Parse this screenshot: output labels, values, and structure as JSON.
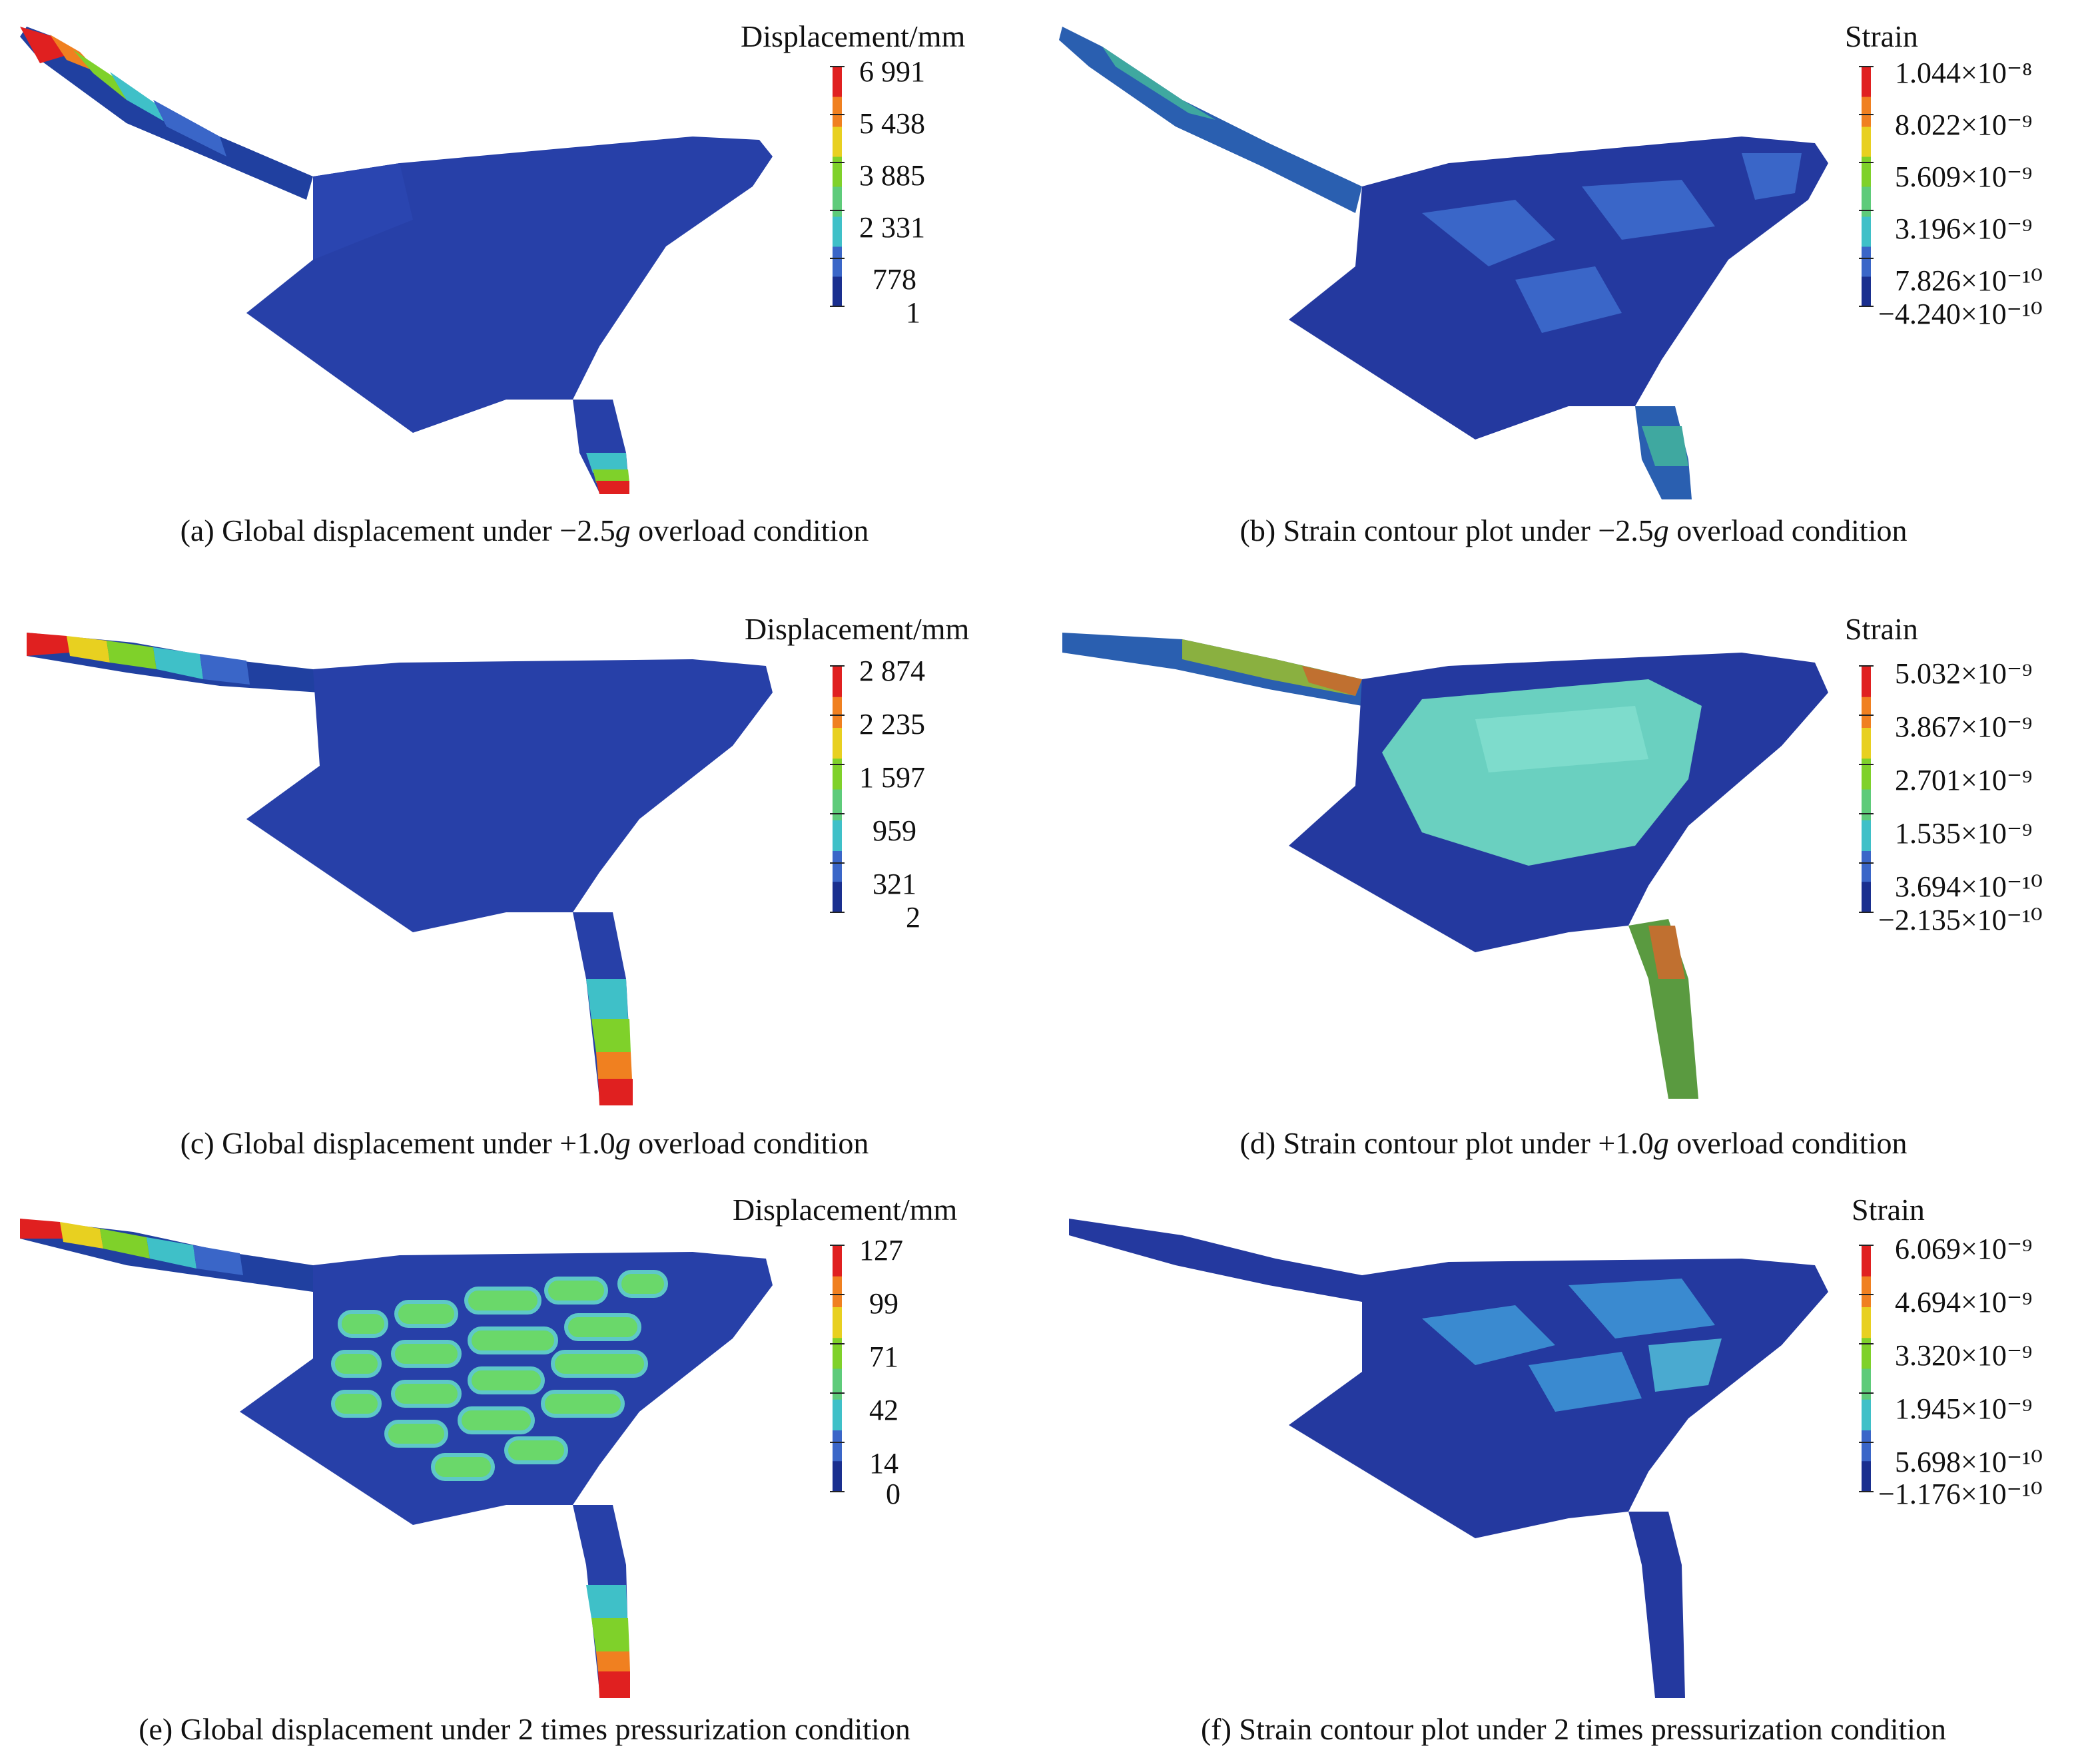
{
  "palette": [
    "#1a2f8f",
    "#3a66c8",
    "#3fc0c8",
    "#5ecb7a",
    "#7fd12a",
    "#e8d020",
    "#f08020",
    "#e02020"
  ],
  "panels": [
    {
      "id": "a",
      "legend_title": "Displacement/mm",
      "ticks": [
        "6 991",
        "5 438",
        "3 885",
        "2 331",
        "778",
        "1"
      ],
      "caption_pre": "(a) Global displacement under −2.5",
      "caption_g": "g",
      "caption_post": " overload condition"
    },
    {
      "id": "b",
      "legend_title": "Strain",
      "ticks": [
        "1.044×10⁻⁸",
        "8.022×10⁻⁹",
        "5.609×10⁻⁹",
        "3.196×10⁻⁹",
        "7.826×10⁻¹⁰",
        "−4.240×10⁻¹⁰"
      ],
      "caption_pre": "(b) Strain contour plot under −2.5",
      "caption_g": "g",
      "caption_post": " overload condition"
    },
    {
      "id": "c",
      "legend_title": "Displacement/mm",
      "ticks": [
        "2 874",
        "2 235",
        "1 597",
        "959",
        "321",
        "2"
      ],
      "caption_pre": "(c) Global displacement under +1.0",
      "caption_g": "g",
      "caption_post": " overload condition"
    },
    {
      "id": "d",
      "legend_title": "Strain",
      "ticks": [
        "5.032×10⁻⁹",
        "3.867×10⁻⁹",
        "2.701×10⁻⁹",
        "1.535×10⁻⁹",
        "3.694×10⁻¹⁰",
        "−2.135×10⁻¹⁰"
      ],
      "caption_pre": "(d) Strain contour plot under +1.0",
      "caption_g": "g",
      "caption_post": " overload condition"
    },
    {
      "id": "e",
      "legend_title": "Displacement/mm",
      "ticks": [
        "127",
        "99",
        "71",
        "42",
        "14",
        "0"
      ],
      "caption_pre": "(e) Global displacement under 2 times pressurization condition",
      "caption_g": "",
      "caption_post": ""
    },
    {
      "id": "f",
      "legend_title": "Strain",
      "ticks": [
        "6.069×10⁻⁹",
        "4.694×10⁻⁹",
        "3.320×10⁻⁹",
        "1.945×10⁻⁹",
        "5.698×10⁻¹⁰",
        "−1.176×10⁻¹⁰"
      ],
      "caption_pre": "(f) Strain contour plot under 2 times pressurization condition",
      "caption_g": "",
      "caption_post": ""
    }
  ]
}
